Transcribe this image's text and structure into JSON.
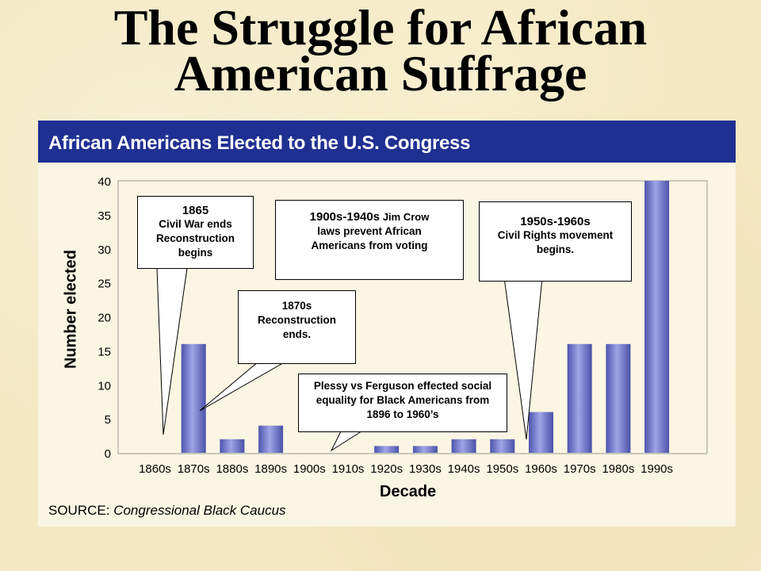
{
  "slide": {
    "title_line1": "The Struggle for African",
    "title_line2": "American Suffrage"
  },
  "panel": {
    "header": "African Americans Elected to the U.S. Congress",
    "source_label": "SOURCE:",
    "source_value": "Congressional Black Caucus"
  },
  "callouts": {
    "c1865": {
      "head": "1865",
      "body": "Civil War ends Reconstruction begins"
    },
    "c1870s": {
      "head": "1870s",
      "body": "Reconstruction ends."
    },
    "c1900s": {
      "head": "1900s-1940s",
      "body_inline": "Jim Crow",
      "body": "laws prevent African Americans from voting"
    },
    "c1950s": {
      "head": "1950s-1960s",
      "body": "Civil Rights movement begins."
    },
    "plessy": {
      "body": "Plessy vs Ferguson effected social equality for Black Americans from 1896 to 1960’s"
    }
  },
  "chart_data": {
    "type": "bar",
    "title": "African Americans Elected to the U.S. Congress",
    "xlabel": "Decade",
    "ylabel": "Number elected",
    "categories": [
      "1860s",
      "1870s",
      "1880s",
      "1890s",
      "1900s",
      "1910s",
      "1920s",
      "1930s",
      "1940s",
      "1950s",
      "1960s",
      "1970s",
      "1980s",
      "1990s"
    ],
    "values": [
      0,
      16,
      2,
      4,
      0,
      0,
      1,
      1,
      2,
      2,
      6,
      16,
      16,
      40
    ],
    "yticks": [
      0,
      5,
      10,
      15,
      20,
      25,
      30,
      35,
      40
    ],
    "ylim": [
      0,
      40
    ],
    "grid": false,
    "bar_color": "#6f76c6"
  }
}
